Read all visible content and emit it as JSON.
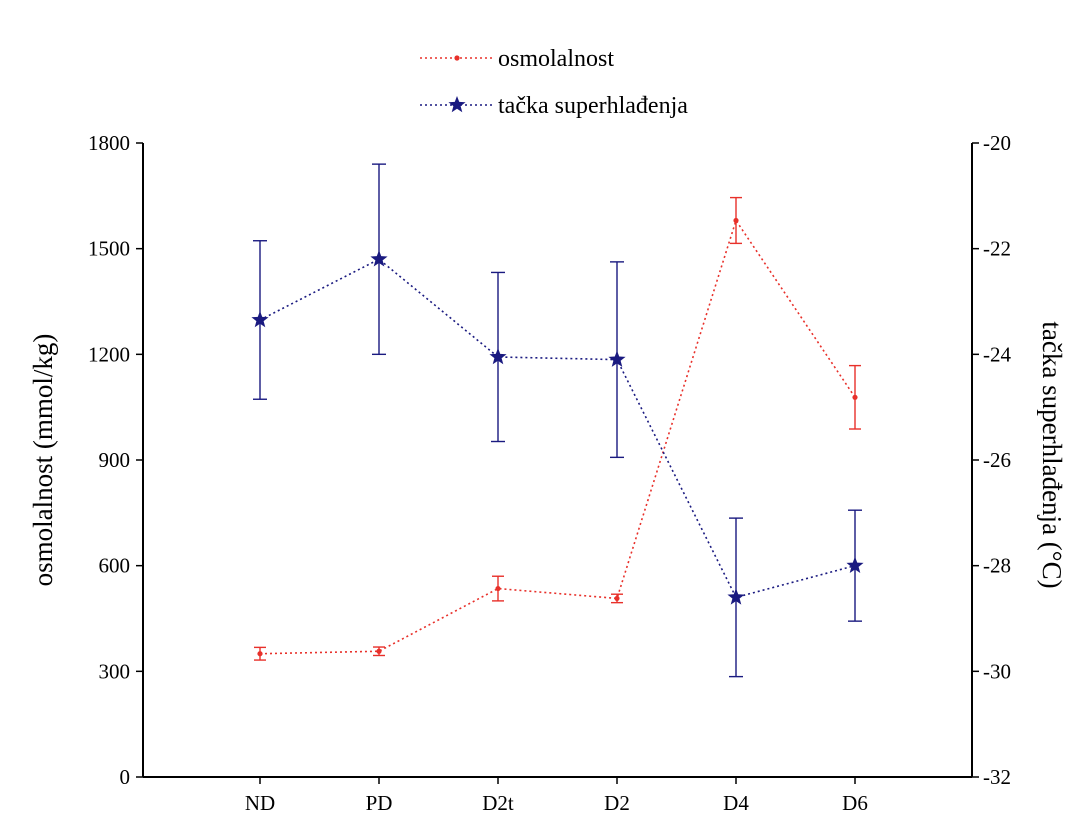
{
  "chart_data": {
    "type": "line",
    "categories": [
      "ND",
      "PD",
      "D2t",
      "D2",
      "D4",
      "D6"
    ],
    "series": [
      {
        "name": "osmolalnost",
        "axis": "left",
        "color": "#e8302a",
        "marker": "dot",
        "line_style": "dotted",
        "values": [
          350,
          357,
          535,
          507,
          1580,
          1078
        ],
        "errors": [
          18,
          12,
          35,
          12,
          65,
          90
        ]
      },
      {
        "name": "tačka superhlađenja",
        "axis": "right",
        "color": "#1a1a80",
        "marker": "star",
        "line_style": "dotted",
        "values": [
          -23.35,
          -22.2,
          -24.05,
          -24.1,
          -28.6,
          -28.0
        ],
        "errors": [
          1.5,
          1.8,
          1.6,
          1.85,
          1.5,
          1.05
        ]
      }
    ],
    "y_left": {
      "label": "osmolalnost (mmol/kg)",
      "ylim": [
        0,
        1800
      ],
      "ticks": [
        0,
        300,
        600,
        900,
        1200,
        1500,
        1800
      ]
    },
    "y_right": {
      "label": "tačka superhlađenja (°C)",
      "ylim": [
        -32,
        -20
      ],
      "ticks": [
        -20,
        -22,
        -24,
        -26,
        -28,
        -30,
        -32
      ]
    },
    "xlabel": "",
    "title": "",
    "grid": false,
    "legend_position": "top-center"
  }
}
